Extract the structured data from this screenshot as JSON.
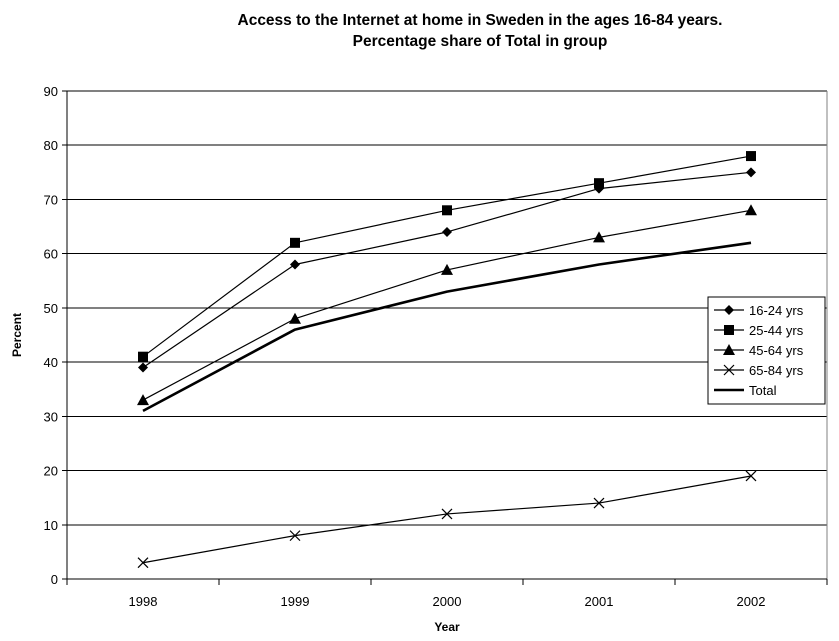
{
  "chart_data": {
    "type": "line",
    "title_line1": "Access to the Internet at home in Sweden in the ages 16-84 years.",
    "title_line2": "Percentage share of Total in group",
    "xlabel": "Year",
    "ylabel": "Percent",
    "categories": [
      "1998",
      "1999",
      "2000",
      "2001",
      "2002"
    ],
    "ylim": [
      0,
      90
    ],
    "yticks": [
      0,
      10,
      20,
      30,
      40,
      50,
      60,
      70,
      80,
      90
    ],
    "grid": "horizontal",
    "legend_position": "right",
    "series": [
      {
        "name": "16-24 yrs",
        "marker": "diamond",
        "values": [
          39,
          58,
          64,
          72,
          75
        ]
      },
      {
        "name": "25-44 yrs",
        "marker": "square",
        "values": [
          41,
          62,
          68,
          73,
          78
        ]
      },
      {
        "name": "45-64 yrs",
        "marker": "triangle",
        "values": [
          33,
          48,
          57,
          63,
          68
        ]
      },
      {
        "name": "65-84 yrs",
        "marker": "x",
        "values": [
          3,
          8,
          12,
          14,
          19
        ]
      },
      {
        "name": "Total",
        "marker": "none",
        "bold": true,
        "values": [
          31,
          46,
          53,
          58,
          62
        ]
      }
    ]
  }
}
